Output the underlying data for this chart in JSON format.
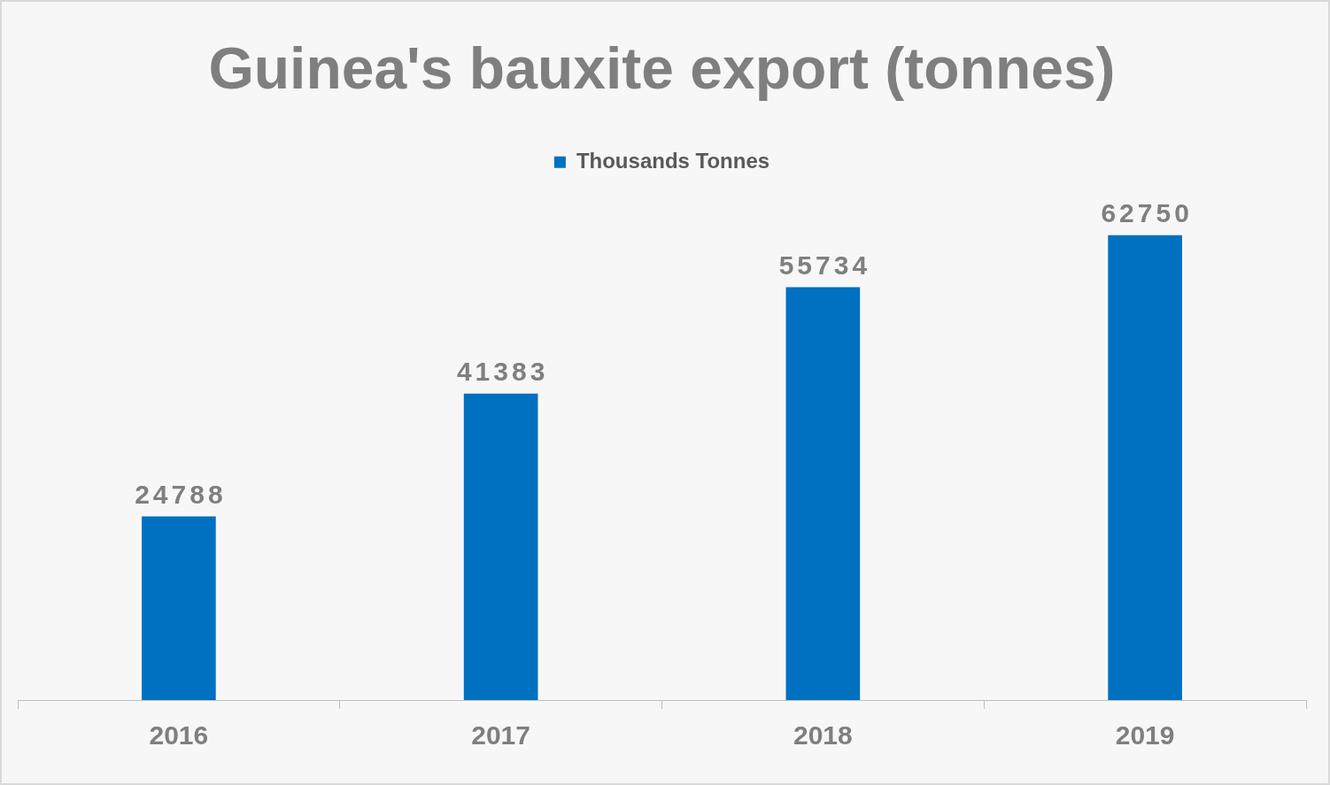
{
  "chart_data": {
    "type": "bar",
    "title": "Guinea's bauxite export (tonnes)",
    "categories": [
      "2016",
      "2017",
      "2018",
      "2019"
    ],
    "series": [
      {
        "name": "Thousands Tonnes",
        "color": "#0070c0",
        "values": [
          24788,
          41383,
          55734,
          62750
        ]
      }
    ],
    "data_labels": true,
    "legend": "top",
    "grid": false,
    "tick_labels": "x"
  }
}
